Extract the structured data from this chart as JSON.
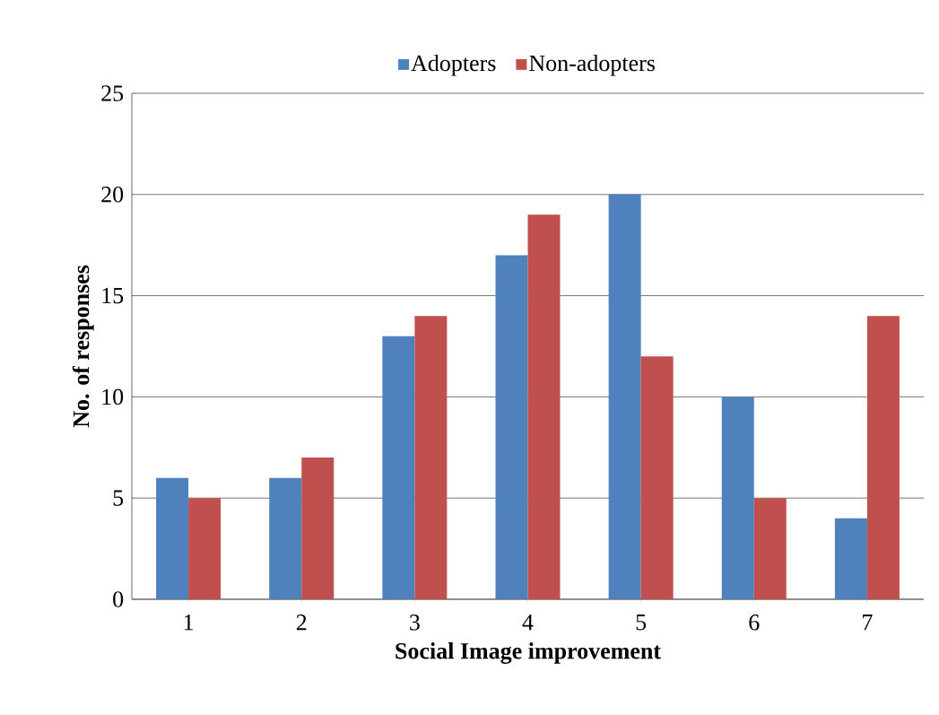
{
  "chart_data": {
    "type": "bar",
    "xlabel": "Social Image improvement",
    "ylabel": "No. of responses",
    "categories": [
      "1",
      "2",
      "3",
      "4",
      "5",
      "6",
      "7"
    ],
    "series": [
      {
        "name": "Adopters",
        "color": "#4f81bd",
        "values": [
          6,
          6,
          13,
          17,
          20,
          10,
          4
        ]
      },
      {
        "name": "Non-adopters",
        "color": "#c0504d",
        "values": [
          5,
          7,
          14,
          19,
          12,
          5,
          14
        ]
      }
    ],
    "ylim": [
      0,
      25
    ],
    "yticks": [
      0,
      5,
      10,
      15,
      20,
      25
    ],
    "grid": "y",
    "legend": "top"
  }
}
